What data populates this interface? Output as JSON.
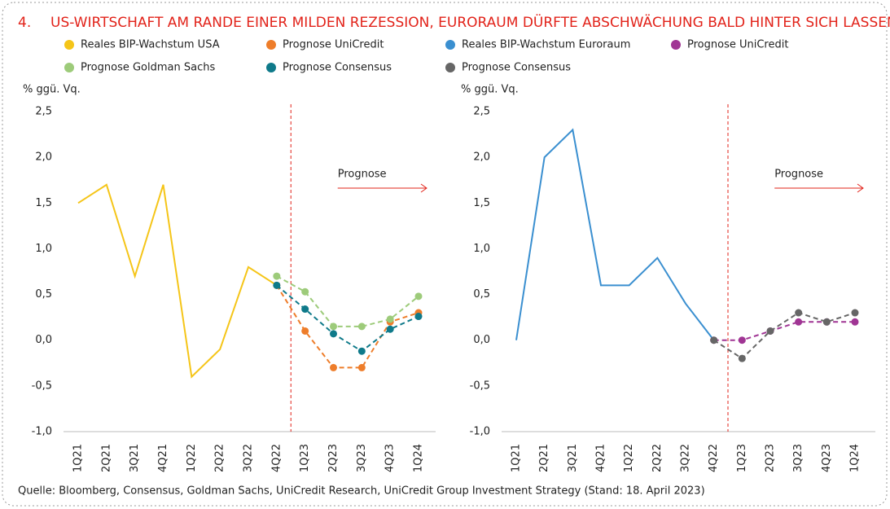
{
  "header": {
    "number": "4.",
    "title": "US-WIRTSCHAFT AM RANDE EINER MILDEN REZESSION, EURORAUM DÜRFTE ABSCHWÄCHUNG BALD HINTER SICH LASSEN"
  },
  "chart_data": [
    {
      "type": "line",
      "y_label": "% ggü. Vq.",
      "annotation": "Prognose",
      "categories": [
        "1Q21",
        "2Q21",
        "3Q21",
        "4Q21",
        "1Q22",
        "2Q22",
        "3Q22",
        "4Q22",
        "1Q23",
        "2Q23",
        "3Q23",
        "4Q23",
        "1Q24"
      ],
      "ylim": [
        -1.0,
        2.5
      ],
      "yticks": [
        {
          "value": -1.0,
          "label": "-1,0"
        },
        {
          "value": -0.5,
          "label": "-0,5"
        },
        {
          "value": 0.0,
          "label": "0,0"
        },
        {
          "value": 0.5,
          "label": "0,5"
        },
        {
          "value": 1.0,
          "label": "1,0"
        },
        {
          "value": 1.5,
          "label": "1,5"
        },
        {
          "value": 2.0,
          "label": "2,0"
        },
        {
          "value": 2.5,
          "label": "2,5"
        }
      ],
      "series": [
        {
          "name": "Reales BIP-Wachstum USA",
          "color": "#f5c518",
          "style": "solid",
          "values": [
            1.5,
            1.7,
            0.7,
            1.7,
            -0.4,
            -0.1,
            0.8,
            0.6,
            null,
            null,
            null,
            null,
            null
          ]
        },
        {
          "name": "Prognose UniCredit",
          "color": "#ee7d2a",
          "style": "dashed",
          "values": [
            null,
            null,
            null,
            null,
            null,
            null,
            null,
            0.6,
            0.1,
            -0.3,
            -0.3,
            0.2,
            0.3
          ]
        },
        {
          "name": "Prognose Goldman Sachs",
          "color": "#9dcb7a",
          "style": "dashed",
          "values": [
            null,
            null,
            null,
            null,
            null,
            null,
            null,
            0.7,
            0.53,
            0.15,
            0.15,
            0.23,
            0.48
          ]
        },
        {
          "name": "Prognose Consensus",
          "color": "#0f7a8a",
          "style": "dashed",
          "values": [
            null,
            null,
            null,
            null,
            null,
            null,
            null,
            0.6,
            0.34,
            0.07,
            -0.12,
            0.12,
            0.26
          ]
        }
      ]
    },
    {
      "type": "line",
      "y_label": "% ggü. Vq.",
      "annotation": "Prognose",
      "categories": [
        "1Q21",
        "2Q21",
        "3Q21",
        "4Q21",
        "1Q22",
        "2Q22",
        "3Q22",
        "4Q22",
        "1Q23",
        "2Q23",
        "3Q23",
        "4Q23",
        "1Q24"
      ],
      "ylim": [
        -1.0,
        2.5
      ],
      "yticks": [
        {
          "value": -1.0,
          "label": "-1,0"
        },
        {
          "value": -0.5,
          "label": "-0,5"
        },
        {
          "value": 0.0,
          "label": "0,0"
        },
        {
          "value": 0.5,
          "label": "0,5"
        },
        {
          "value": 1.0,
          "label": "1,0"
        },
        {
          "value": 1.5,
          "label": "1,5"
        },
        {
          "value": 2.0,
          "label": "2,0"
        },
        {
          "value": 2.5,
          "label": "2,5"
        }
      ],
      "series": [
        {
          "name": "Reales BIP-Wachstum Euroraum",
          "color": "#3a8fd0",
          "style": "solid",
          "values": [
            0.0,
            2.0,
            2.3,
            0.6,
            0.6,
            0.9,
            0.4,
            0.0,
            null,
            null,
            null,
            null,
            null
          ]
        },
        {
          "name": "Prognose UniCredit",
          "color": "#a03594",
          "style": "dashed",
          "values": [
            null,
            null,
            null,
            null,
            null,
            null,
            null,
            0.0,
            0.0,
            0.1,
            0.2,
            0.2,
            0.2
          ]
        },
        {
          "name": "Prognose Consensus",
          "color": "#666666",
          "style": "dashed",
          "values": [
            null,
            null,
            null,
            null,
            null,
            null,
            null,
            0.0,
            -0.2,
            0.1,
            0.3,
            0.2,
            0.3
          ]
        }
      ]
    }
  ],
  "source": "Quelle: Bloomberg, Consensus, Goldman Sachs, UniCredit Research, UniCredit Group Investment Strategy (Stand: 18. April 2023)"
}
